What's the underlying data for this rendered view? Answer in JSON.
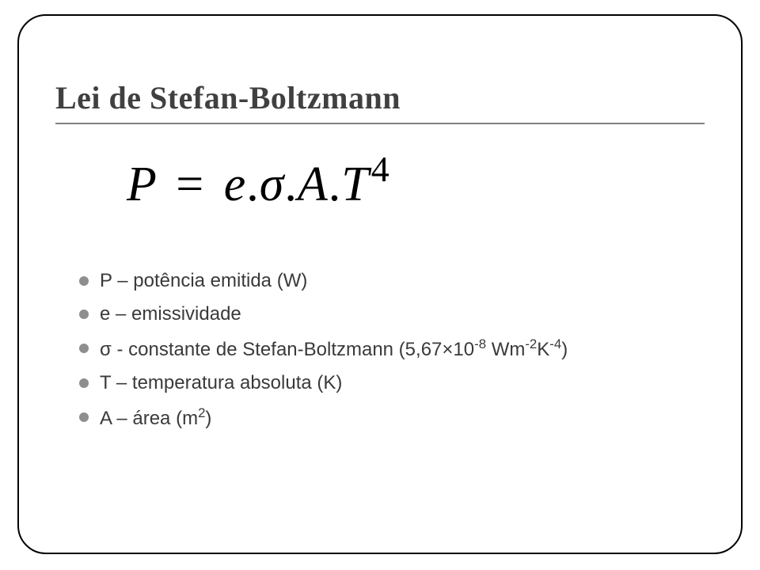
{
  "title": "Lei de Stefan-Boltzmann",
  "formula": {
    "P": "P",
    "eq": "=",
    "e": "e",
    "dot": ".",
    "sigma": "σ",
    "A": "A",
    "T": "T",
    "exp": "4"
  },
  "defs": {
    "p": "P – potência emitida (W)",
    "e": "e – emissividade",
    "sigma_pre": "σ - constante de Stefan-Boltzmann (5,67×10",
    "sigma_exp1": "-8",
    "sigma_mid1": " Wm",
    "sigma_exp2": "-2",
    "sigma_mid2": "K",
    "sigma_exp3": "-4",
    "sigma_post": ")",
    "t": "T – temperatura absoluta (K)",
    "a_pre": "A – área (m",
    "a_exp": "2",
    "a_post": ")"
  }
}
